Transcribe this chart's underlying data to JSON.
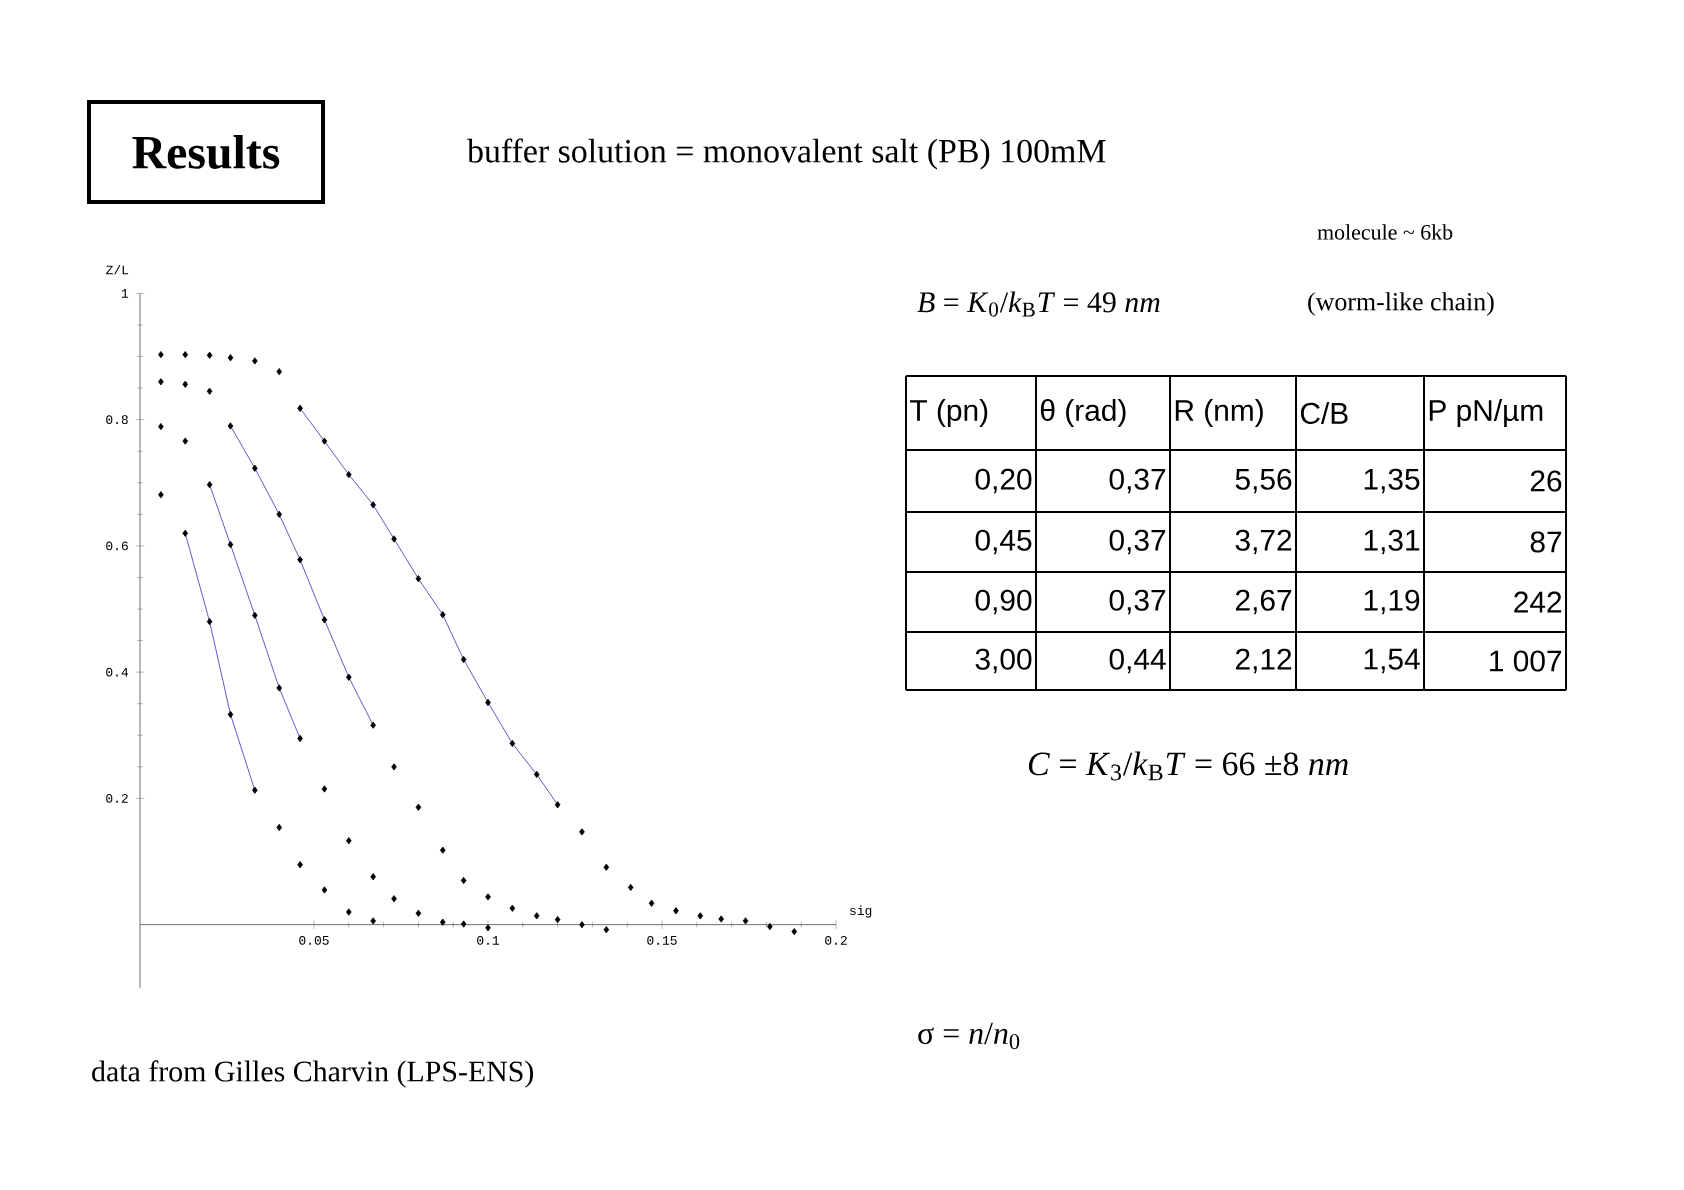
{
  "chart_data": [
    {
      "type": "scatter",
      "title": "Results",
      "subtitle": "buffer solution = monovalent salt (PB) 100mM",
      "xlabel": "sig",
      "ylabel": "Z/L",
      "xlim": [
        0,
        0.2
      ],
      "ylim": [
        -0.1,
        1
      ],
      "xticks": [
        0.05,
        0.1,
        0.15,
        0.2
      ],
      "yticks": [
        0.2,
        0.4,
        0.6,
        0.8,
        1
      ],
      "marker": "diamond",
      "series": [
        {
          "type": "line",
          "marker": "none",
          "color": "#5b5bc8",
          "x": [
            0.046,
            0.053,
            0.06,
            0.067,
            0.073,
            0.08,
            0.087,
            0.093,
            0.1,
            0.107,
            0.114,
            0.12
          ],
          "values": [
            0.818,
            0.766,
            0.713,
            0.665,
            0.611,
            0.548,
            0.491,
            0.42,
            0.352,
            0.287,
            0.238,
            0.19
          ]
        },
        {
          "type": "line",
          "marker": "none",
          "color": "#5b5bc8",
          "x": [
            0.026,
            0.033,
            0.04,
            0.046,
            0.053,
            0.06,
            0.067
          ],
          "values": [
            0.79,
            0.723,
            0.65,
            0.578,
            0.483,
            0.392,
            0.316
          ]
        },
        {
          "type": "line",
          "marker": "none",
          "color": "#5b5bc8",
          "x": [
            0.02,
            0.026,
            0.033,
            0.04,
            0.046
          ],
          "values": [
            0.697,
            0.602,
            0.49,
            0.375,
            0.295
          ]
        },
        {
          "type": "line",
          "marker": "none",
          "color": "#5b5bc8",
          "x": [
            0.013,
            0.02,
            0.026,
            0.033
          ],
          "values": [
            0.62,
            0.48,
            0.333,
            0.213
          ]
        },
        {
          "type": "scatter",
          "color": "#000000",
          "x": [
            0.006,
            0.013,
            0.02,
            0.026,
            0.033,
            0.04,
            0.046,
            0.053,
            0.06,
            0.067,
            0.073,
            0.08,
            0.087,
            0.093,
            0.1,
            0.107,
            0.114,
            0.12,
            0.127,
            0.134,
            0.141,
            0.147,
            0.154,
            0.161,
            0.167,
            0.174,
            0.181,
            0.188
          ],
          "values": [
            0.903,
            0.903,
            0.902,
            0.898,
            0.893,
            0.876,
            0.818,
            0.766,
            0.713,
            0.665,
            0.611,
            0.548,
            0.491,
            0.42,
            0.352,
            0.287,
            0.238,
            0.19,
            0.147,
            0.091,
            0.059,
            0.034,
            0.022,
            0.014,
            0.009,
            0.006,
            -0.003,
            -0.011
          ]
        },
        {
          "type": "scatter",
          "color": "#000000",
          "x": [
            0.006,
            0.013,
            0.02,
            0.026,
            0.033,
            0.04,
            0.046,
            0.053,
            0.06,
            0.067,
            0.073,
            0.08,
            0.087,
            0.093,
            0.1,
            0.107,
            0.114,
            0.12,
            0.127,
            0.134
          ],
          "values": [
            0.86,
            0.856,
            0.845,
            0.79,
            0.723,
            0.65,
            0.578,
            0.483,
            0.392,
            0.316,
            0.25,
            0.186,
            0.118,
            0.07,
            0.044,
            0.026,
            0.014,
            0.008,
            0.0,
            -0.008
          ]
        },
        {
          "type": "scatter",
          "color": "#000000",
          "x": [
            0.006,
            0.013,
            0.02,
            0.026,
            0.033,
            0.04,
            0.046,
            0.053,
            0.06,
            0.067,
            0.073,
            0.08,
            0.087,
            0.093,
            0.1
          ],
          "values": [
            0.789,
            0.766,
            0.697,
            0.602,
            0.49,
            0.375,
            0.295,
            0.215,
            0.133,
            0.076,
            0.041,
            0.018,
            0.004,
            0.001,
            -0.005
          ]
        },
        {
          "type": "scatter",
          "color": "#000000",
          "x": [
            0.006,
            0.013,
            0.02,
            0.026,
            0.033,
            0.04,
            0.046,
            0.053,
            0.06,
            0.067
          ],
          "values": [
            0.681,
            0.62,
            0.48,
            0.333,
            0.213,
            0.154,
            0.095,
            0.055,
            0.02,
            0.006
          ]
        }
      ],
      "annotations": [
        "σ = *n*/*n*$_{0}$",
        "data from Gilles Charvin (LPS-ENS)"
      ]
    },
    {
      "type": "other",
      "annotations": [
        "molecule  ~ 6kb",
        "*B* = *K*$_{0}$/*k*$_{B}$*T* = 49 *nm*",
        "(worm-like chain)",
        "*C* = *K*$_{3}$/*k*$_{B}$*T* = 66 ±8 *nm*"
      ],
      "categories": [
        "T (pn)",
        "θ (rad)",
        "R (nm)",
        "C/B",
        "P pN/µm"
      ],
      "cell_labels": [
        [
          "0,20",
          "0,37",
          "5,56",
          "1,35",
          "26"
        ],
        [
          "0,45",
          "0,37",
          "3,72",
          "1,31",
          "87"
        ],
        [
          "0,90",
          "0,37",
          "2,67",
          "1,19",
          "242"
        ],
        [
          "3,00",
          "0,44",
          "2,12",
          "1,54",
          "1 007"
        ]
      ]
    }
  ]
}
